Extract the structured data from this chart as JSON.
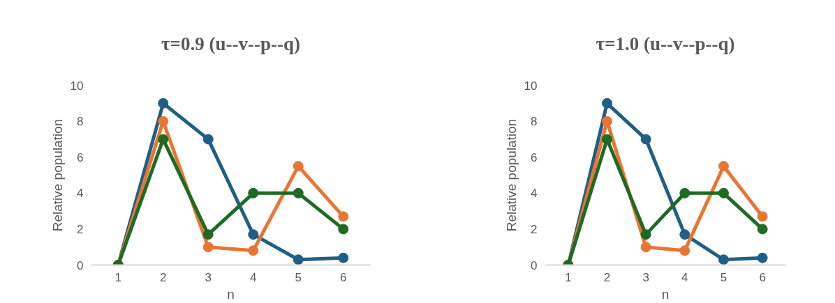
{
  "chart_data": [
    {
      "type": "line",
      "title": "τ=0.9 (u--v--p--q)",
      "xlabel": "n",
      "ylabel": "Relative population",
      "categories": [
        "1",
        "2",
        "3",
        "4",
        "5",
        "6"
      ],
      "ylim": [
        0,
        10
      ],
      "yticks": [
        0,
        2,
        4,
        6,
        8,
        10
      ],
      "grid": false,
      "marker": "circle",
      "line_style": "solid",
      "series": [
        {
          "color": "#1f5f86",
          "values": [
            0,
            9,
            7,
            1.7,
            0.3,
            0.4
          ]
        },
        {
          "color": "#e97532",
          "values": [
            0,
            8,
            1,
            0.8,
            5.5,
            2.7
          ]
        },
        {
          "color": "#1e6b23",
          "values": [
            0,
            7,
            1.7,
            4,
            4,
            2
          ]
        }
      ]
    },
    {
      "type": "line",
      "title": "τ=1.0 (u--v--p--q)",
      "xlabel": "n",
      "ylabel": "Relative population",
      "categories": [
        "1",
        "2",
        "3",
        "4",
        "5",
        "6"
      ],
      "ylim": [
        0,
        10
      ],
      "yticks": [
        0,
        2,
        4,
        6,
        8,
        10
      ],
      "grid": false,
      "marker": "circle",
      "line_style": "solid",
      "series": [
        {
          "color": "#1f5f86",
          "values": [
            0,
            9,
            7,
            1.7,
            0.3,
            0.4
          ]
        },
        {
          "color": "#e97532",
          "values": [
            0,
            8,
            1,
            0.8,
            5.5,
            2.7
          ]
        },
        {
          "color": "#1e6b23",
          "values": [
            0,
            7,
            1.7,
            4,
            4,
            2
          ]
        }
      ]
    }
  ]
}
